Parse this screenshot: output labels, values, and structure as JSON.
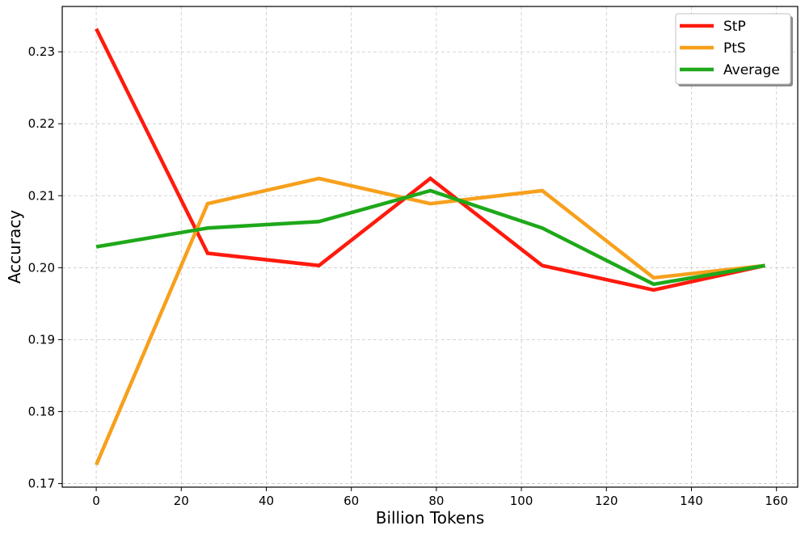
{
  "chart_data": {
    "type": "line",
    "title": "",
    "xlabel": "Billion Tokens",
    "ylabel": "Accuracy",
    "xlim": [
      -8,
      165
    ],
    "ylim": [
      0.1695,
      0.2363
    ],
    "xticks": [
      0,
      20,
      40,
      60,
      80,
      100,
      120,
      140,
      160
    ],
    "yticks": [
      0.17,
      0.18,
      0.19,
      0.2,
      0.21,
      0.22,
      0.23
    ],
    "grid": true,
    "legend_position": "top-right",
    "x": [
      0,
      26.2,
      52.4,
      78.6,
      104.9,
      131.1,
      157.3
    ],
    "series": [
      {
        "name": "StP",
        "color": "#ff1a0d",
        "values": [
          0.2332,
          0.202,
          0.2003,
          0.2124,
          0.2003,
          0.1969,
          0.2003
        ]
      },
      {
        "name": "PtS",
        "color": "#f7a01c",
        "values": [
          0.1726,
          0.2089,
          0.2124,
          0.2089,
          0.2107,
          0.1986,
          0.2003
        ]
      },
      {
        "name": "Average",
        "color": "#1ea81a",
        "values": [
          0.2029,
          0.2055,
          0.2064,
          0.2107,
          0.2055,
          0.1977,
          0.2003
        ]
      }
    ]
  }
}
